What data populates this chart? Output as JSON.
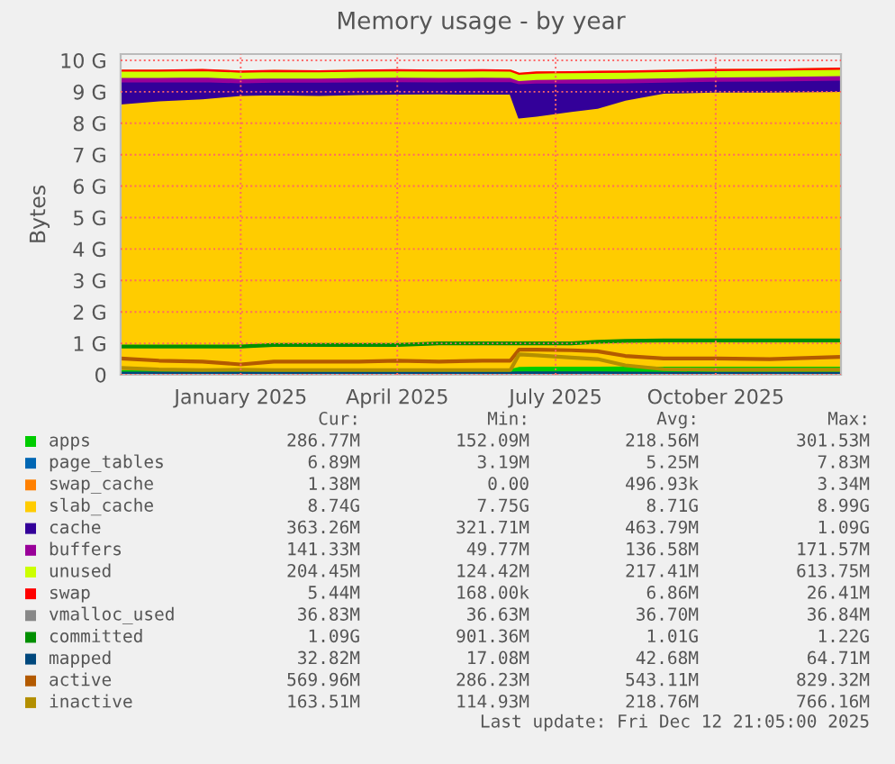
{
  "chart_data": {
    "type": "area",
    "title": "Memory usage - by year",
    "ylabel": "Bytes",
    "stacked": true,
    "grid": true,
    "legend": "bottom",
    "x": [
      "2024-10-24",
      "2024-11-15",
      "2024-12-10",
      "2025-01-01",
      "2025-01-20",
      "2025-02-15",
      "2025-03-10",
      "2025-04-01",
      "2025-04-25",
      "2025-05-20",
      "2025-06-05",
      "2025-06-10",
      "2025-06-20",
      "2025-07-10",
      "2025-07-25",
      "2025-08-10",
      "2025-09-01",
      "2025-10-01",
      "2025-11-01",
      "2025-12-12"
    ],
    "xlim": [
      "2024-10-24",
      "2025-12-12"
    ],
    "xticks": [
      {
        "value": "2025-01-01",
        "label": "January 2025"
      },
      {
        "value": "2025-04-01",
        "label": "April 2025"
      },
      {
        "value": "2025-07-01",
        "label": "July 2025"
      },
      {
        "value": "2025-10-01",
        "label": "October 2025"
      }
    ],
    "ylim": [
      0,
      10.2
    ],
    "yticks": [
      0,
      {
        "value": 1,
        "label": "1 G"
      },
      {
        "value": 2,
        "label": "2 G"
      },
      {
        "value": 3,
        "label": "3 G"
      },
      {
        "value": 4,
        "label": "4 G"
      },
      {
        "value": 5,
        "label": "5 G"
      },
      {
        "value": 6,
        "label": "6 G"
      },
      {
        "value": 7,
        "label": "7 G"
      },
      {
        "value": 8,
        "label": "8 G"
      },
      {
        "value": 9,
        "label": "9 G"
      },
      {
        "value": 10,
        "label": "10 G"
      }
    ],
    "series": [
      {
        "name": "apps",
        "color": "#00cc00",
        "values": [
          0.18,
          0.18,
          0.19,
          0.2,
          0.2,
          0.2,
          0.21,
          0.22,
          0.22,
          0.22,
          0.22,
          0.28,
          0.29,
          0.29,
          0.29,
          0.3,
          0.29,
          0.29,
          0.29,
          0.29
        ]
      },
      {
        "name": "page_tables",
        "color": "#0066b3",
        "values": [
          null,
          null,
          null,
          null,
          null,
          null,
          null,
          null,
          null,
          null,
          null,
          null,
          null,
          null,
          null,
          null,
          null,
          null,
          null,
          null
        ]
      },
      {
        "name": "swap_cache",
        "color": "#ff8000",
        "values": [
          null,
          null,
          null,
          null,
          null,
          null,
          null,
          null,
          null,
          null,
          null,
          null,
          null,
          null,
          null,
          null,
          null,
          null,
          null,
          null
        ]
      },
      {
        "name": "slab_cache",
        "color": "#ffcc00",
        "values": [
          8.45,
          8.55,
          8.6,
          8.7,
          8.72,
          8.7,
          8.72,
          8.72,
          8.73,
          8.72,
          8.72,
          7.9,
          7.95,
          8.1,
          8.2,
          8.45,
          8.68,
          8.72,
          8.72,
          8.74
        ]
      },
      {
        "name": "cache",
        "color": "#330099",
        "values": [
          0.7,
          0.6,
          0.55,
          0.4,
          0.4,
          0.42,
          0.4,
          0.4,
          0.38,
          0.4,
          0.4,
          1.09,
          1.05,
          0.9,
          0.8,
          0.55,
          0.35,
          0.34,
          0.35,
          0.36
        ]
      },
      {
        "name": "buffers",
        "color": "#990099",
        "values": [
          0.14,
          0.14,
          0.15,
          0.14,
          0.14,
          0.13,
          0.14,
          0.14,
          0.14,
          0.14,
          0.13,
          0.1,
          0.12,
          0.13,
          0.14,
          0.14,
          0.14,
          0.14,
          0.14,
          0.14
        ]
      },
      {
        "name": "unused",
        "color": "#ccff00",
        "values": [
          0.2,
          0.2,
          0.2,
          0.2,
          0.2,
          0.2,
          0.2,
          0.2,
          0.2,
          0.2,
          0.2,
          0.2,
          0.2,
          0.2,
          0.2,
          0.2,
          0.2,
          0.2,
          0.2,
          0.2
        ]
      },
      {
        "name": "swap",
        "color": "#ff0000",
        "values": [
          0.005,
          0.005,
          0.005,
          0.005,
          0.005,
          0.005,
          0.005,
          0.005,
          0.005,
          0.005,
          0.005,
          0.005,
          0.005,
          0.005,
          0.005,
          0.005,
          0.005,
          0.005,
          0.005,
          0.005
        ]
      },
      {
        "name": "vmalloc_used",
        "color": "#888888",
        "type": "line",
        "values": [
          null,
          null,
          null,
          null,
          null,
          null,
          null,
          null,
          null,
          null,
          null,
          null,
          null,
          null,
          null,
          null,
          null,
          null,
          null,
          null
        ]
      },
      {
        "name": "committed",
        "color": "#008f00",
        "type": "line",
        "values": [
          0.9,
          0.9,
          0.9,
          0.9,
          0.95,
          0.95,
          0.95,
          0.95,
          1.0,
          1.0,
          1.0,
          1.0,
          1.0,
          1.0,
          1.05,
          1.08,
          1.09,
          1.09,
          1.09,
          1.09
        ]
      },
      {
        "name": "mapped",
        "color": "#00487d",
        "type": "line",
        "values": [
          0.04,
          0.04,
          0.04,
          0.04,
          0.04,
          0.04,
          0.04,
          0.04,
          0.04,
          0.04,
          0.04,
          0.05,
          0.05,
          0.05,
          0.05,
          0.04,
          0.03,
          0.03,
          0.03,
          0.03
        ]
      },
      {
        "name": "active",
        "color": "#b35a00",
        "type": "line",
        "values": [
          0.52,
          0.45,
          0.42,
          0.33,
          0.42,
          0.42,
          0.42,
          0.45,
          0.42,
          0.45,
          0.45,
          0.8,
          0.8,
          0.78,
          0.75,
          0.6,
          0.52,
          0.52,
          0.5,
          0.57
        ]
      },
      {
        "name": "inactive",
        "color": "#b38f00",
        "type": "line",
        "values": [
          0.22,
          0.17,
          0.15,
          0.16,
          0.15,
          0.15,
          0.15,
          0.15,
          0.15,
          0.15,
          0.15,
          0.65,
          0.62,
          0.55,
          0.5,
          0.3,
          0.18,
          0.16,
          0.16,
          0.16
        ]
      }
    ],
    "annotations": [
      "Cur:",
      "Min:",
      "Avg:",
      "Max:",
      "286.77M",
      "152.09M",
      "218.56M",
      "301.53M",
      "6.89M",
      "3.19M",
      "5.25M",
      "7.83M",
      "1.38M",
      "0.00",
      "496.93k",
      "3.34M",
      "8.74G",
      "7.75G",
      "8.71G",
      "8.99G",
      "363.26M",
      "321.71M",
      "463.79M",
      "1.09G",
      "141.33M",
      "49.77M",
      "136.58M",
      "171.57M",
      "204.45M",
      "124.42M",
      "217.41M",
      "613.75M",
      "5.44M",
      "168.00k",
      "6.86M",
      "26.41M",
      "36.83M",
      "36.63M",
      "36.70M",
      "36.84M",
      "1.09G",
      "901.36M",
      "1.01G",
      "1.22G",
      "32.82M",
      "17.08M",
      "42.68M",
      "64.71M",
      "569.96M",
      "286.23M",
      "543.11M",
      "829.32M",
      "163.51M",
      "114.93M",
      "218.76M",
      "766.16M",
      "Last update: Fri Dec 12 21:05:00 2025"
    ]
  }
}
